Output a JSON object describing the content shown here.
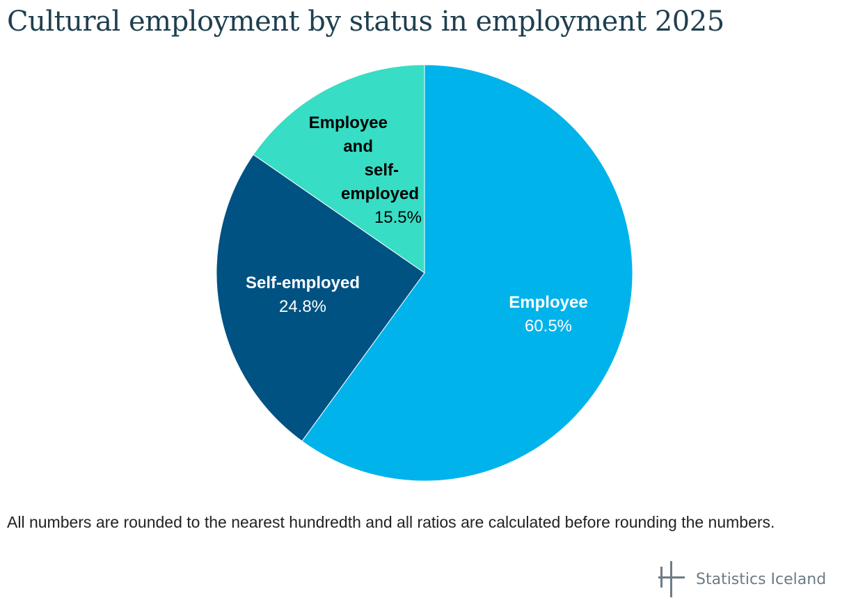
{
  "page": {
    "title": "Cultural employment by status in employment 2025",
    "footnote": "All numbers are rounded to the nearest hundredth and all ratios are calculated before rounding the numbers.",
    "brand": "Statistics Iceland",
    "logo_icon": "statistics-iceland-logo-icon"
  },
  "chart_data": {
    "type": "pie",
    "title": "Cultural employment by status in employment 2025",
    "start_angle_deg": 0,
    "direction": "clockwise",
    "slices": [
      {
        "label": "Employee",
        "value": 60.5,
        "display": "60.5%",
        "color": "#00b3ea",
        "label_color": "#ffffff"
      },
      {
        "label": "Self-employed",
        "value": 24.8,
        "display": "24.8%",
        "color": "#005282",
        "label_color": "#ffffff"
      },
      {
        "label": "Employee and self-employed",
        "label_lines": [
          "Employee",
          "and",
          "self-",
          "employed"
        ],
        "value": 15.5,
        "display": "15.5%",
        "color": "#37ddc4",
        "label_color": "#000000"
      }
    ]
  }
}
